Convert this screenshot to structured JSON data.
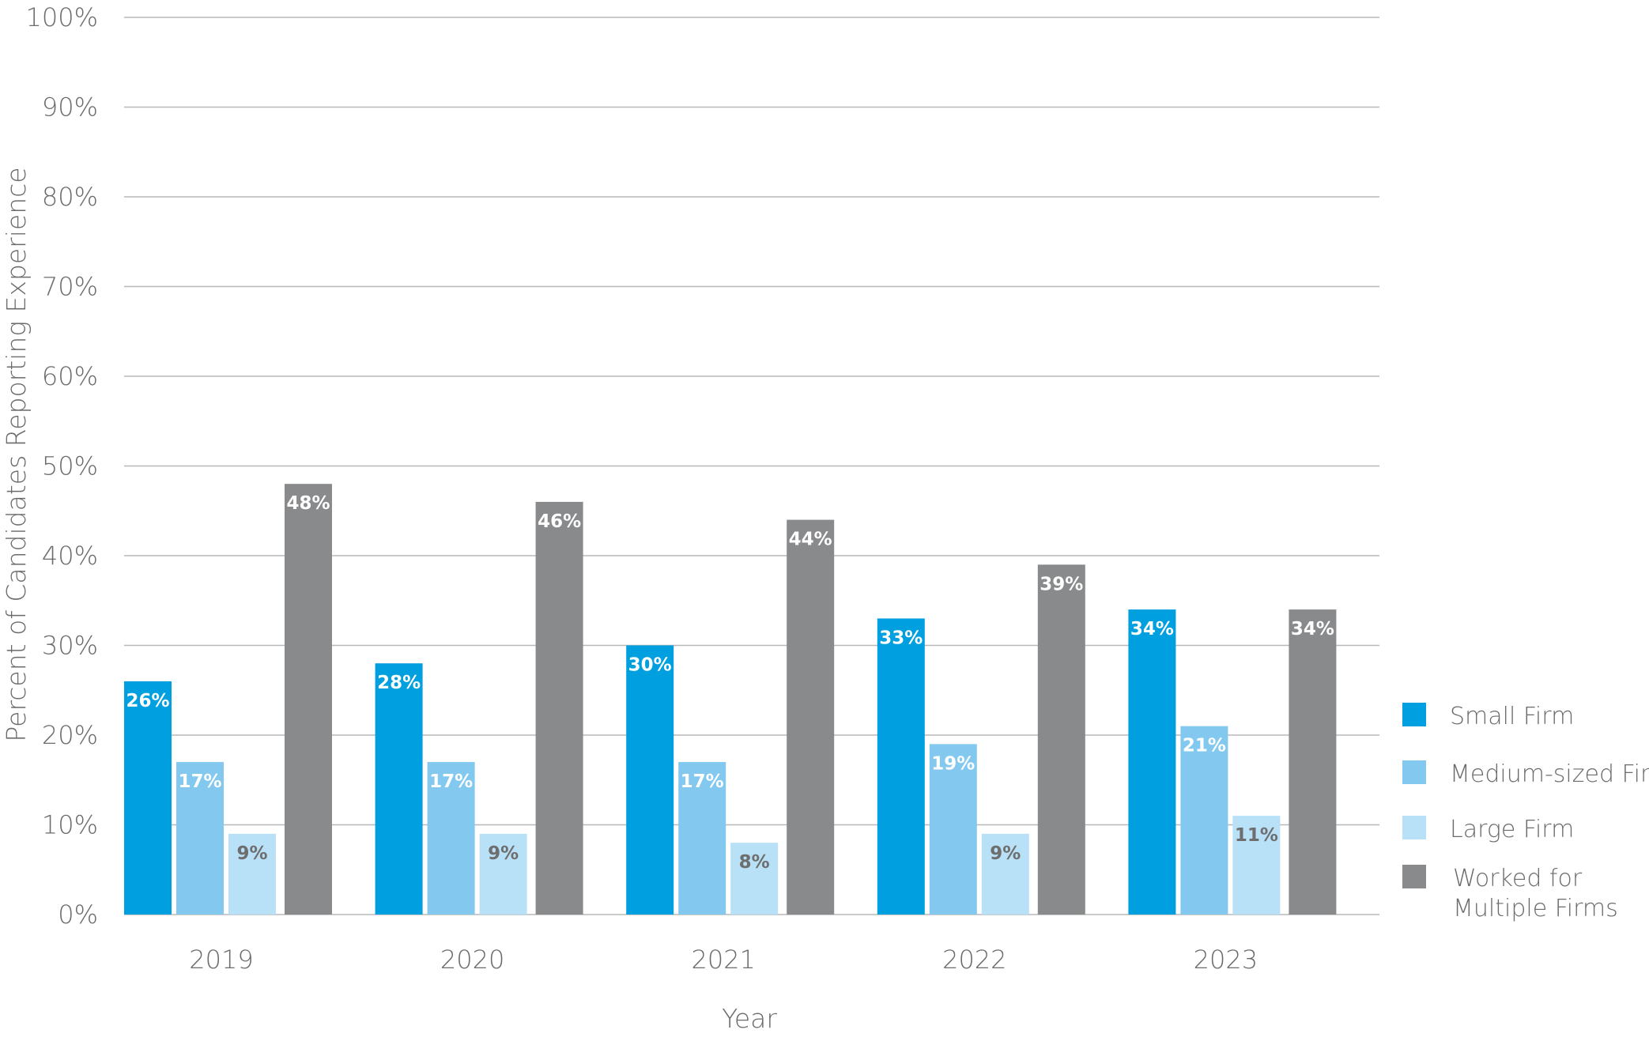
{
  "chart_data": {
    "type": "bar",
    "title": "",
    "xlabel": "Year",
    "ylabel": "Percent of Candidates Reporting Experience",
    "categories": [
      "2019",
      "2020",
      "2021",
      "2022",
      "2023"
    ],
    "ylim": [
      0,
      100
    ],
    "yticks": [
      "0%",
      "10%",
      "20%",
      "30%",
      "40%",
      "50%",
      "60%",
      "70%",
      "80%",
      "90%",
      "100%"
    ],
    "grid": true,
    "legend_position": "right",
    "series": [
      {
        "name": "Small Firm",
        "color": "#009fdf",
        "label_color": "#ffffff",
        "values": [
          26,
          28,
          30,
          33,
          34
        ],
        "labels": [
          "26%",
          "28%",
          "30%",
          "33%",
          "34%"
        ]
      },
      {
        "name": "Medium-sized Firm",
        "color": "#83c9ef",
        "label_color": "#ffffff",
        "values": [
          17,
          17,
          17,
          19,
          21
        ],
        "labels": [
          "17%",
          "17%",
          "17%",
          "19%",
          "21%"
        ]
      },
      {
        "name": "Large Firm",
        "color": "#b8e0f7",
        "label_color": "#6e6e6e",
        "values": [
          9,
          9,
          8,
          9,
          11
        ],
        "labels": [
          "9%",
          "9%",
          "8%",
          "9%",
          "11%"
        ]
      },
      {
        "name": "Worked for Multiple Firms",
        "legend_lines": [
          "Worked for",
          "Multiple Firms"
        ],
        "color": "#898a8c",
        "label_color": "#ffffff",
        "values": [
          48,
          46,
          44,
          39,
          34
        ],
        "labels": [
          "48%",
          "46%",
          "44%",
          "39%",
          "34%"
        ]
      }
    ]
  }
}
